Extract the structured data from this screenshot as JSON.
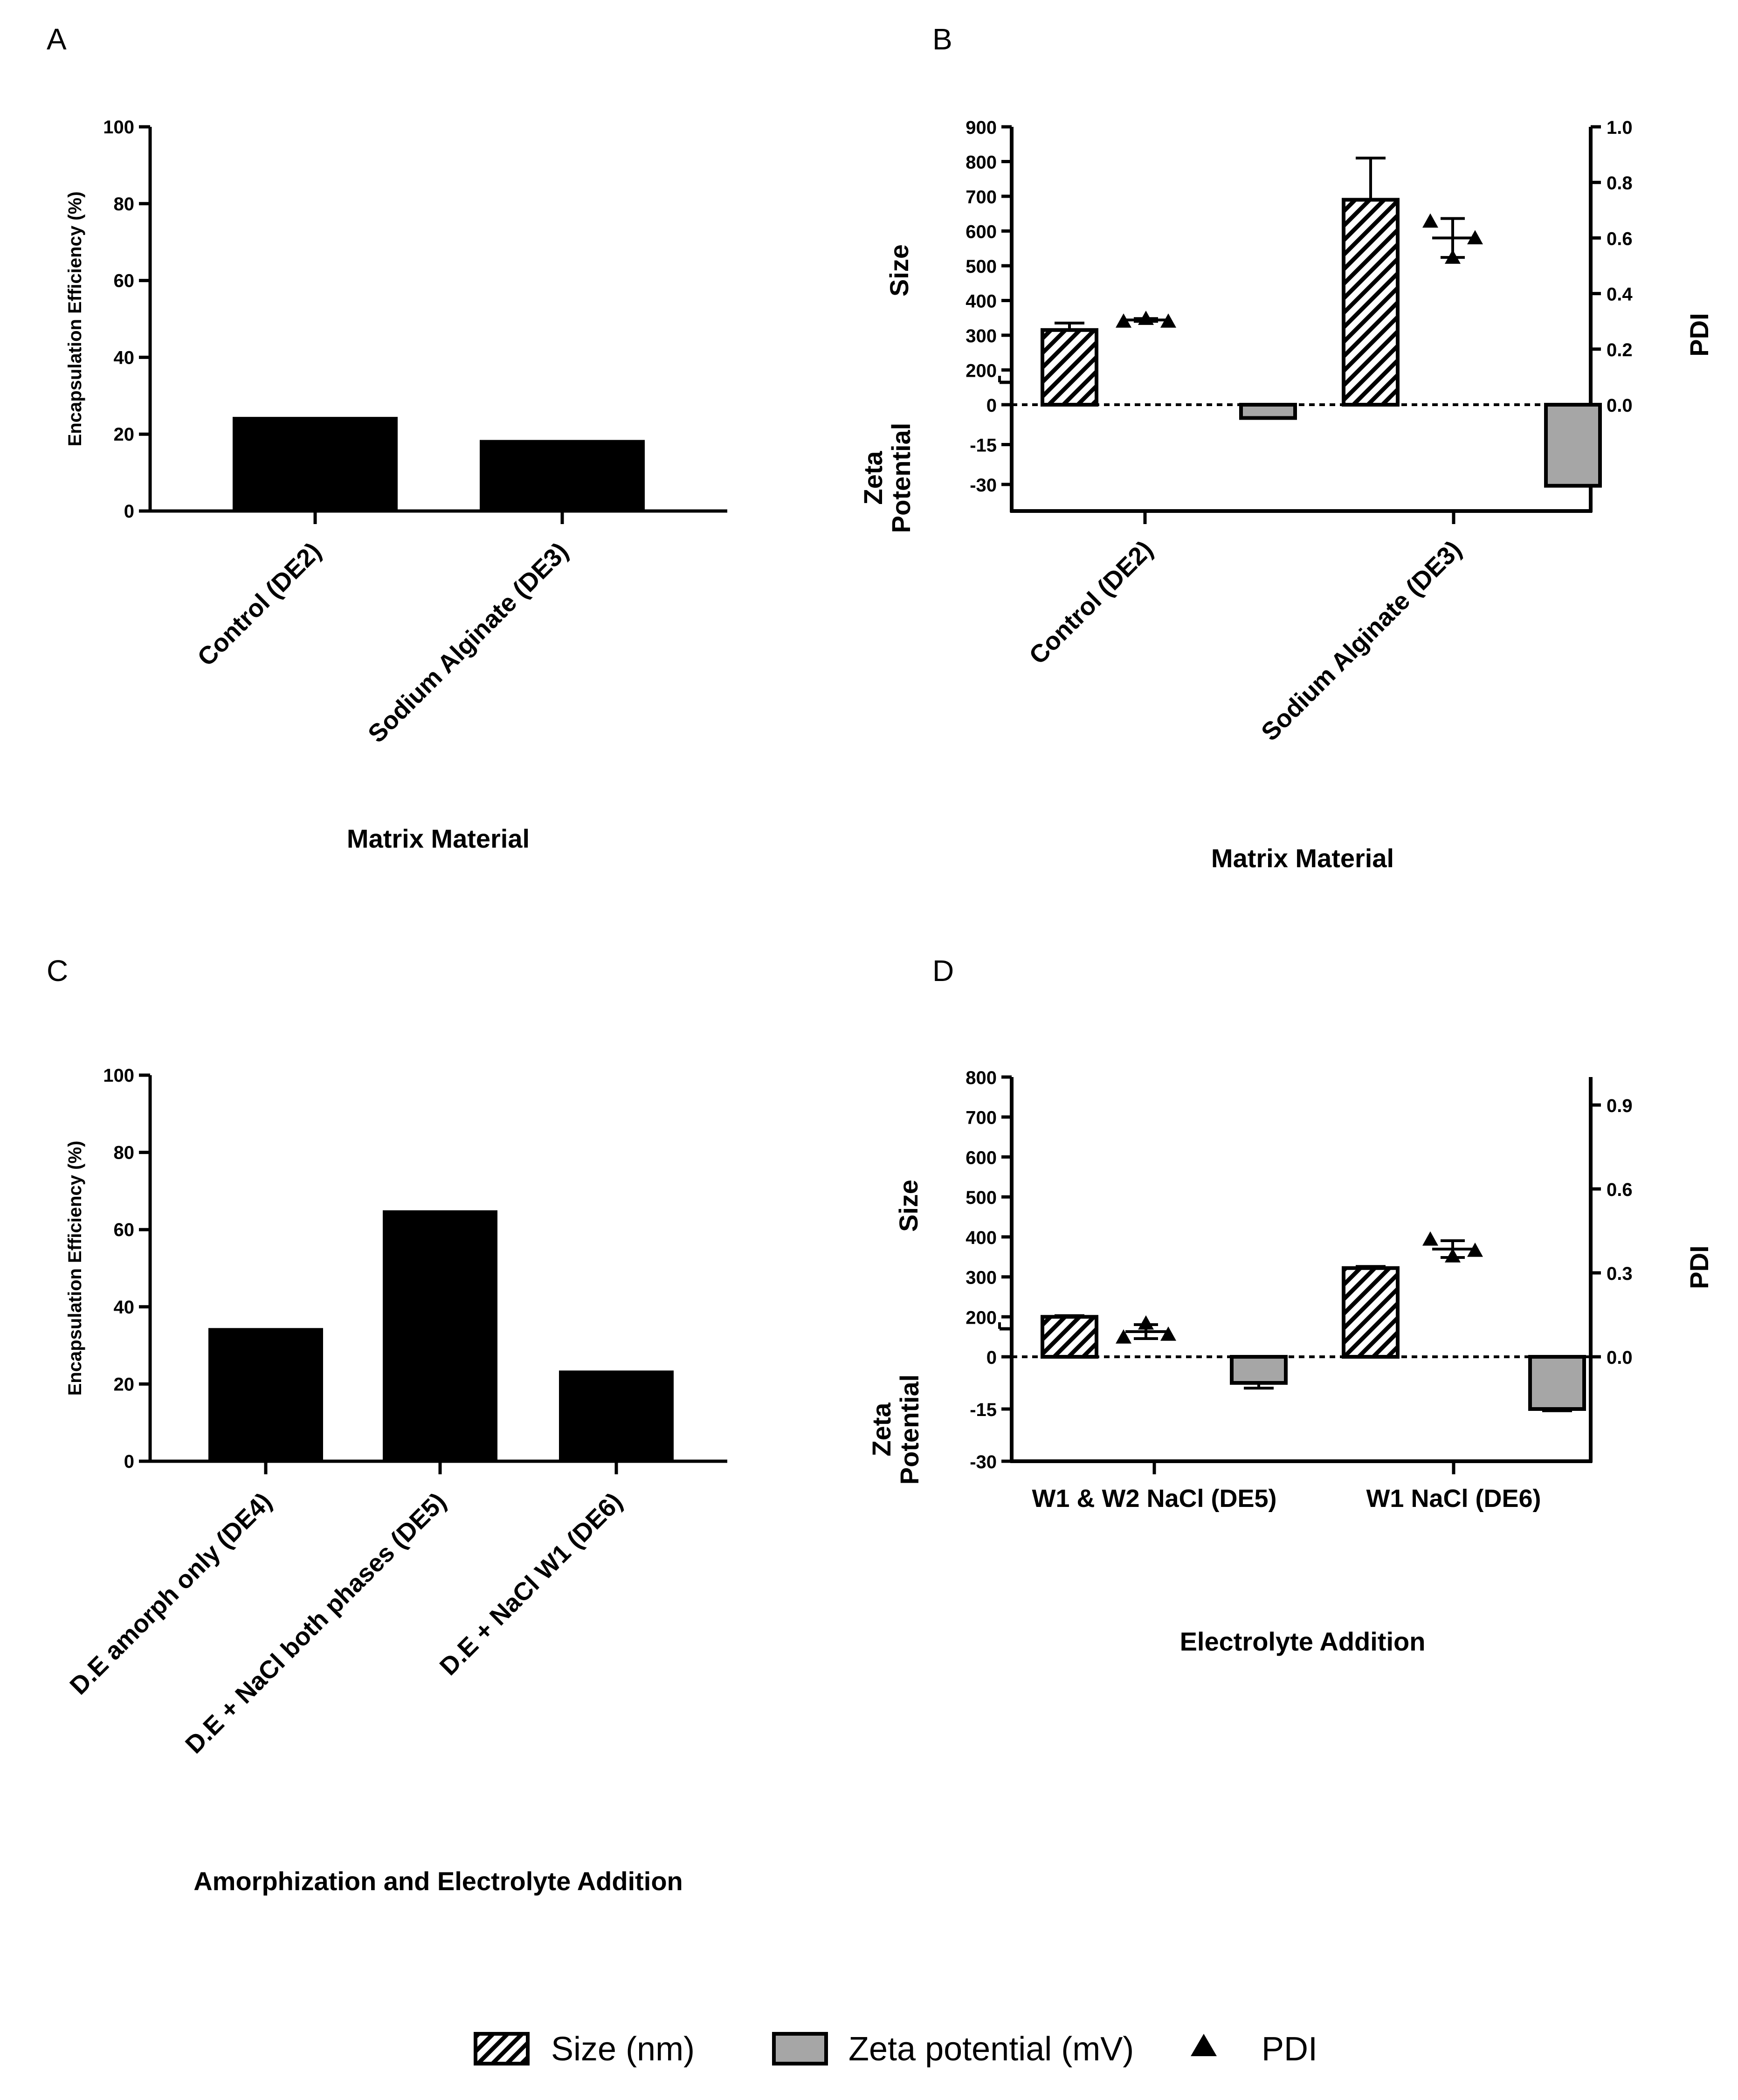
{
  "chart_data": [
    {
      "panel": "A",
      "type": "bar",
      "categories": [
        "Control (DE2)",
        "Sodium Alginate (DE3)"
      ],
      "values": [
        24.5,
        18.5
      ],
      "ylabel": "Encapsulation Efficiency (%)",
      "xlabel": "Matrix Material",
      "ylim": [
        0,
        100
      ],
      "yticks": [
        0,
        20,
        40,
        60,
        80,
        100
      ],
      "colors": {
        "bar": "#000000"
      }
    },
    {
      "panel": "B",
      "type": "bar",
      "categories": [
        "Control (DE2)",
        "Sodium Alginate (DE3)"
      ],
      "xlabel": "Matrix Material",
      "size_label": "Size",
      "zeta_label": "Zeta Potential",
      "pdi_label": "PDI",
      "size_axis": {
        "range": [
          100,
          900
        ],
        "ticks": [
          200,
          300,
          400,
          500,
          600,
          700,
          800,
          900
        ],
        "zero_tick": "0"
      },
      "zeta_axis": {
        "range": [
          0,
          -40
        ],
        "ticks": [
          -15,
          -30
        ]
      },
      "pdi_axis": {
        "range": [
          0,
          1.0
        ],
        "ticks": [
          "0.0",
          "0.2",
          "0.4",
          "0.6",
          "0.8",
          "1.0"
        ]
      },
      "size_values": [
        315,
        690
      ],
      "size_errors": [
        20,
        120
      ],
      "zeta_values": [
        -5,
        -30.5
      ],
      "pdi_points": [
        [
          0.3,
          0.31,
          0.3
        ],
        [
          0.66,
          0.53,
          0.6
        ]
      ],
      "pdi_means": [
        0.305,
        0.6
      ],
      "pdi_errors": [
        0.005,
        0.07
      ]
    },
    {
      "panel": "C",
      "type": "bar",
      "categories": [
        "D.E amorph only (DE4)",
        "D.E + NaCl both phases (DE5)",
        "D.E + NaCl W1 (DE6)"
      ],
      "values": [
        34.5,
        65,
        23.5
      ],
      "ylabel": "Encapsulation Efficiency (%)",
      "xlabel": "Amorphization and Electrolyte Addition",
      "ylim": [
        0,
        100
      ],
      "yticks": [
        0,
        20,
        40,
        60,
        80,
        100
      ],
      "colors": {
        "bar": "#000000"
      }
    },
    {
      "panel": "D",
      "type": "bar",
      "categories": [
        "W1 & W2 NaCl (DE5)",
        "W1 NaCl (DE6)"
      ],
      "xlabel": "Electrolyte Addition",
      "size_label": "Size",
      "zeta_label": "Zeta Potential",
      "pdi_label": "PDI",
      "size_axis": {
        "range": [
          100,
          800
        ],
        "ticks": [
          200,
          300,
          400,
          500,
          600,
          700,
          800
        ],
        "zero_tick": "0"
      },
      "zeta_axis": {
        "range": [
          0,
          -30
        ],
        "ticks": [
          -15,
          -30
        ]
      },
      "pdi_axis": {
        "range": [
          0,
          1.0
        ],
        "ticks": [
          "0.0",
          "0.3",
          "0.6",
          "0.9"
        ]
      },
      "size_values": [
        200,
        322
      ],
      "size_errors": [
        3,
        4
      ],
      "zeta_values": [
        -7.5,
        -15
      ],
      "zeta_errors": [
        1.5,
        0.5
      ],
      "pdi_points": [
        [
          0.07,
          0.12,
          0.08
        ],
        [
          0.42,
          0.36,
          0.38
        ]
      ],
      "pdi_means": [
        0.09,
        0.385
      ],
      "pdi_errors": [
        0.025,
        0.03
      ]
    }
  ],
  "legend": {
    "items": [
      {
        "key": "size",
        "label": "Size (nm)"
      },
      {
        "key": "zeta",
        "label": "Zeta potential (mV)"
      },
      {
        "key": "pdi",
        "label": "PDI"
      }
    ],
    "zeta_color": "#a6a6a6"
  }
}
